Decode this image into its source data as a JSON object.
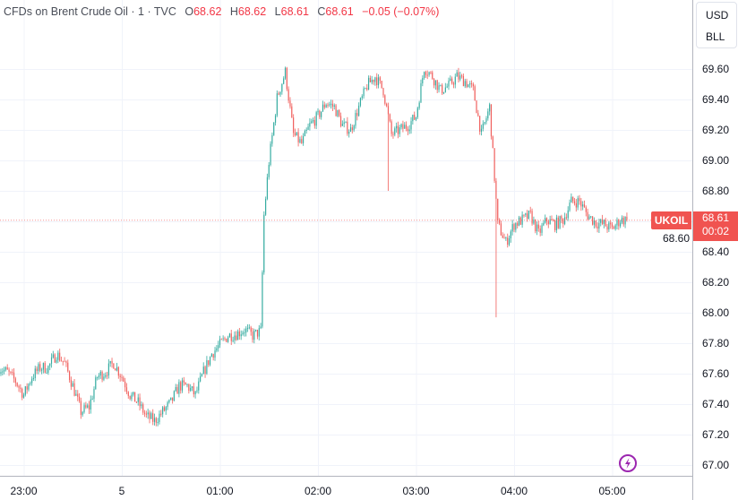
{
  "legend": {
    "title": "CFDs on Brent Crude Oil · 1 · TVC",
    "open_label": "O",
    "open": "68.62",
    "high_label": "H",
    "high": "68.62",
    "low_label": "L",
    "low": "68.61",
    "close_label": "C",
    "close": "68.61",
    "change": "−0.05 (−0.07%)"
  },
  "currency": {
    "line1": "USD",
    "line2": "BLL"
  },
  "last_price": {
    "symbol": "UKOIL",
    "price": "68.61",
    "countdown": "00:02"
  },
  "icons": {
    "bottom": "lightning-icon"
  },
  "colors": {
    "up": "#26a69a",
    "down": "#ef5350",
    "price_tag": "#f05350",
    "accent": "#9c27b0"
  },
  "chart_data": {
    "type": "candlestick",
    "interval": "1",
    "x_tick_labels": [
      "23:00",
      "5",
      "01:00",
      "02:00",
      "03:00",
      "04:00",
      "05:00"
    ],
    "y_tick_labels": [
      "67.00",
      "67.20",
      "67.40",
      "67.60",
      "67.80",
      "68.00",
      "68.20",
      "68.40",
      "68.60",
      "68.80",
      "69.00",
      "69.20",
      "69.40",
      "69.60"
    ],
    "ylim": [
      66.97,
      69.83
    ],
    "grid": true,
    "last_price_line": 68.61,
    "times": [
      "22:45",
      "22:50",
      "22:55",
      "23:00",
      "23:05",
      "23:10",
      "23:15",
      "23:20",
      "23:25",
      "23:30",
      "23:35",
      "23:40",
      "23:45",
      "23:50",
      "23:55",
      "00:00",
      "00:05",
      "00:10",
      "00:15",
      "00:20",
      "00:25",
      "00:30",
      "00:35",
      "00:40",
      "00:45",
      "00:50",
      "00:55",
      "01:00",
      "01:05",
      "01:10",
      "01:15",
      "01:20",
      "01:25",
      "01:27",
      "01:30",
      "01:35",
      "01:40",
      "01:45",
      "01:50",
      "01:55",
      "02:00",
      "02:05",
      "02:10",
      "02:15",
      "02:20",
      "02:25",
      "02:30",
      "02:35",
      "02:40",
      "02:45",
      "02:50",
      "02:55",
      "03:00",
      "03:05",
      "03:10",
      "03:15",
      "03:20",
      "03:25",
      "03:30",
      "03:35",
      "03:40",
      "03:45",
      "03:50",
      "03:55",
      "04:00",
      "04:05",
      "04:10",
      "04:15",
      "04:20",
      "04:25",
      "04:30",
      "04:35",
      "04:40",
      "04:45",
      "04:50",
      "04:55",
      "05:00",
      "05:05",
      "05:09"
    ],
    "close": [
      67.64,
      67.61,
      67.55,
      67.46,
      67.58,
      67.64,
      67.64,
      67.73,
      67.67,
      67.52,
      67.35,
      67.38,
      67.58,
      67.61,
      67.67,
      67.58,
      67.46,
      67.41,
      67.32,
      67.29,
      67.35,
      67.41,
      67.52,
      67.52,
      67.46,
      67.61,
      67.73,
      67.79,
      67.85,
      67.86,
      67.89,
      67.85,
      67.88,
      68.64,
      68.99,
      69.41,
      69.58,
      69.17,
      69.11,
      69.23,
      69.29,
      69.38,
      69.35,
      69.23,
      69.2,
      69.35,
      69.49,
      69.55,
      69.46,
      69.17,
      69.2,
      69.23,
      69.29,
      69.61,
      69.55,
      69.46,
      69.49,
      69.55,
      69.52,
      69.46,
      69.17,
      69.35,
      68.58,
      68.46,
      68.58,
      68.61,
      68.64,
      68.52,
      68.61,
      68.58,
      68.61,
      68.73,
      68.73,
      68.64,
      68.59,
      68.58,
      68.55,
      68.61,
      68.61
    ],
    "notable_lows": [
      {
        "time": "02:43",
        "low": 68.8
      },
      {
        "time": "03:49",
        "low": 67.97
      }
    ]
  }
}
